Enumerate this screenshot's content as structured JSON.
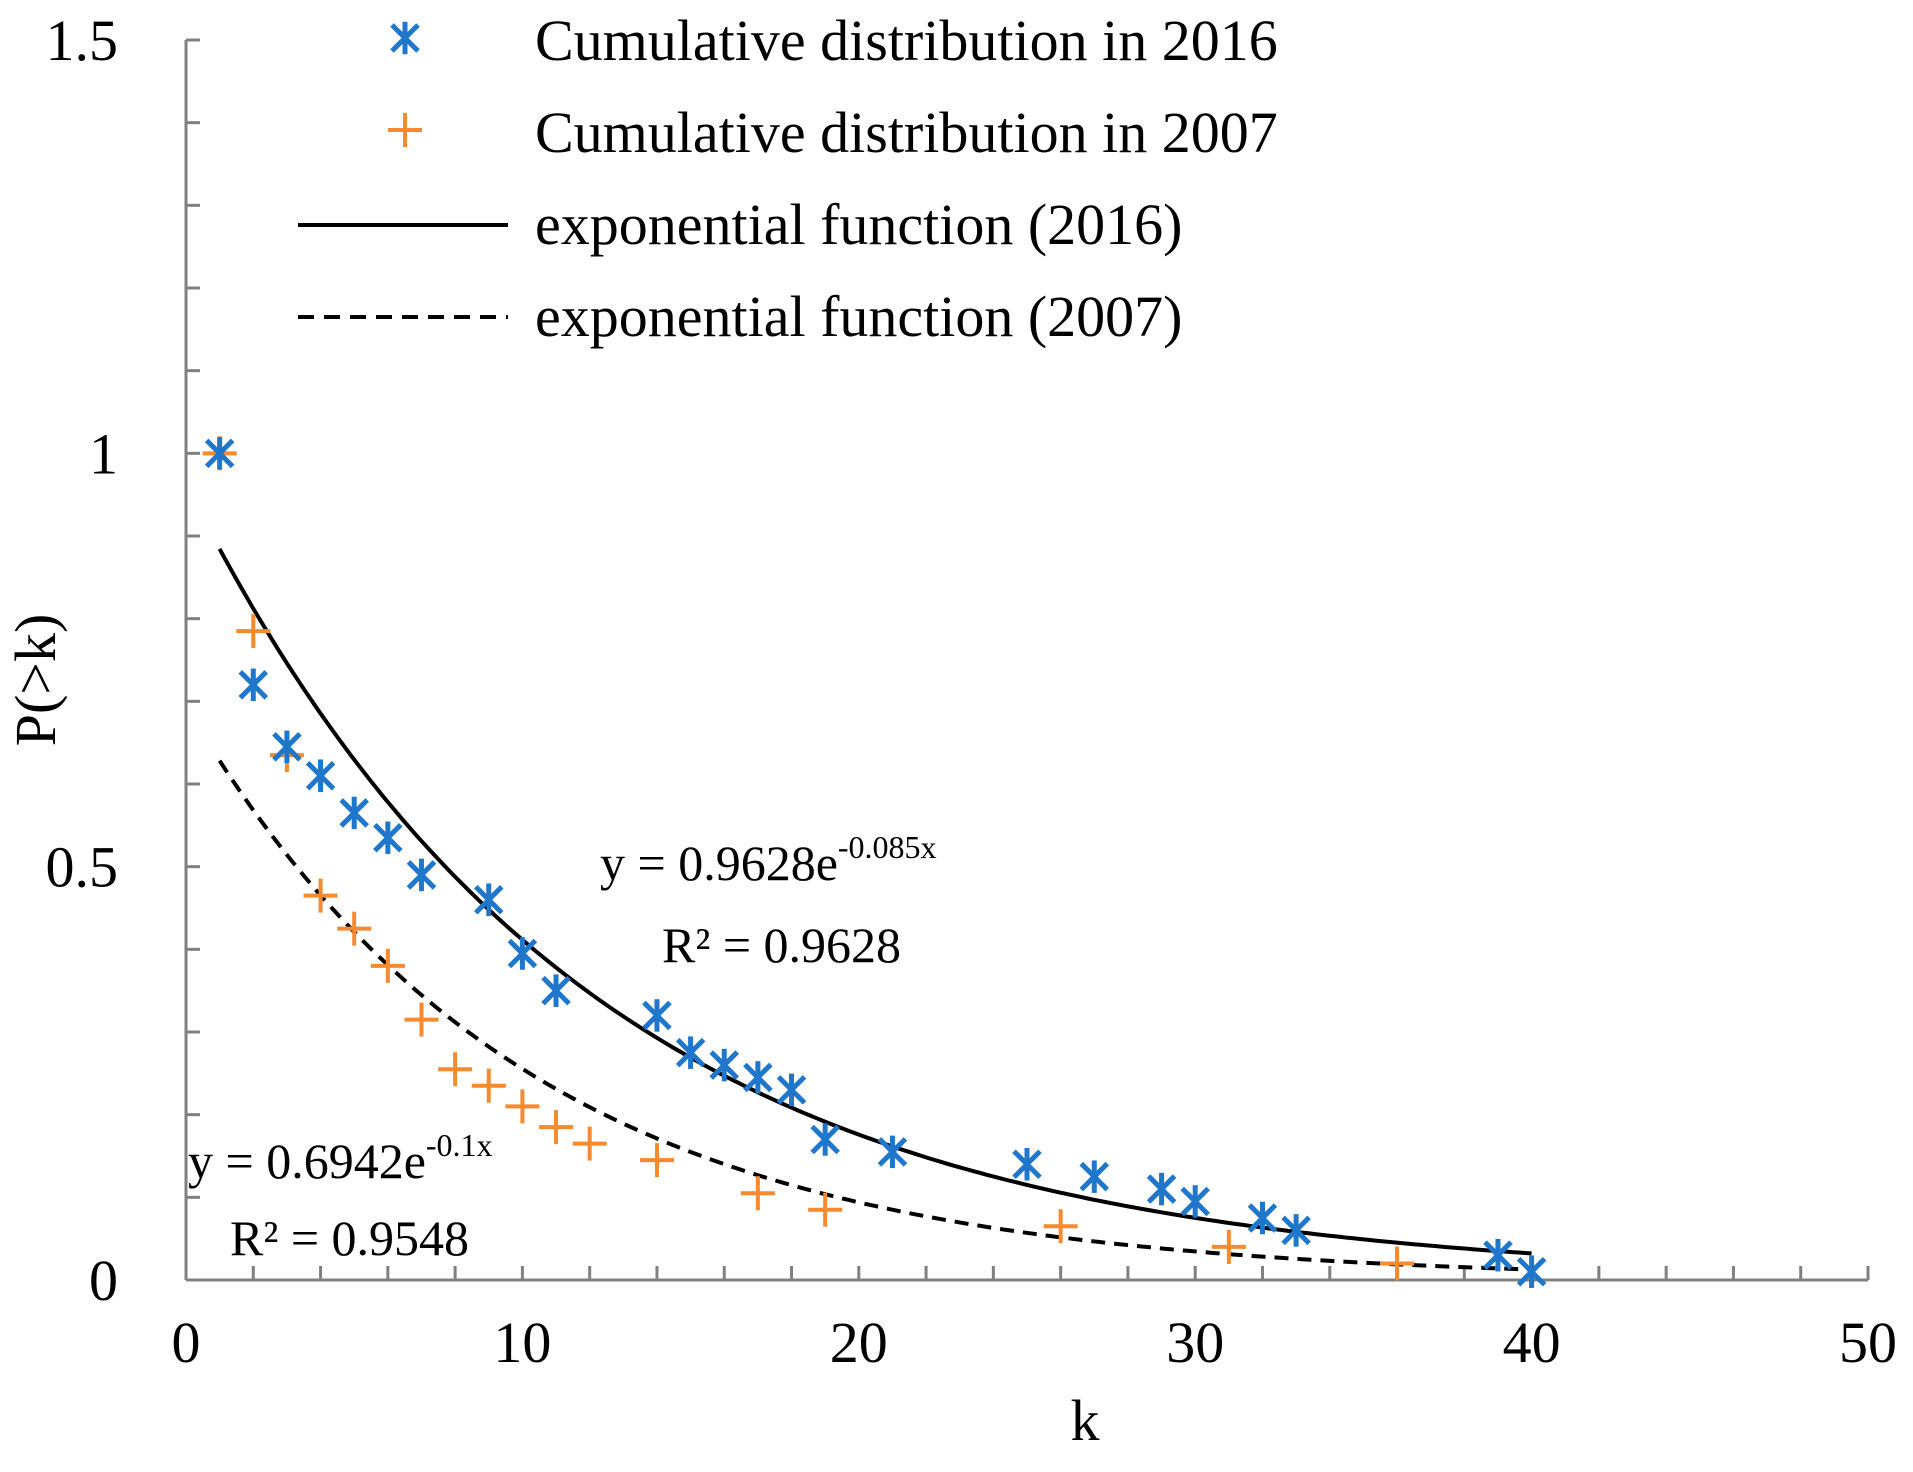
{
  "chart_data": {
    "type": "scatter",
    "xlabel": "k",
    "ylabel": "P(>k)",
    "xlim": [
      0,
      50
    ],
    "ylim": [
      0,
      1.5
    ],
    "x_ticks": [
      0,
      10,
      20,
      30,
      40,
      50
    ],
    "y_ticks": [
      0,
      0.5,
      1,
      1.5
    ],
    "x_tick_labels": [
      "0",
      "10",
      "20",
      "30",
      "40",
      "50"
    ],
    "y_tick_labels": [
      "0",
      "0.5",
      "1",
      "1.5"
    ],
    "x_minor_step": 2,
    "y_minor_step": 0.1,
    "grid": false,
    "legend_position": "top",
    "colors": {
      "series_2016": "#1f77cc",
      "series_2007": "#f58a2e",
      "fit": "#000000",
      "axis": "#808080"
    },
    "series": [
      {
        "name": "Cumulative distribution in 2016",
        "marker": "asterisk",
        "x": [
          1,
          2,
          3,
          4,
          5,
          6,
          7,
          9,
          10,
          11,
          14,
          15,
          16,
          17,
          18,
          19,
          21,
          25,
          27,
          29,
          30,
          32,
          33,
          39,
          40
        ],
        "y": [
          1.0,
          0.72,
          0.645,
          0.61,
          0.565,
          0.535,
          0.49,
          0.46,
          0.395,
          0.35,
          0.32,
          0.275,
          0.26,
          0.245,
          0.23,
          0.17,
          0.155,
          0.14,
          0.125,
          0.11,
          0.095,
          0.075,
          0.06,
          0.03,
          0.01
        ]
      },
      {
        "name": "Cumulative distribution in 2007",
        "marker": "plus",
        "x": [
          1,
          2,
          3,
          4,
          5,
          6,
          7,
          8,
          9,
          10,
          11,
          12,
          14,
          17,
          19,
          26,
          31,
          36
        ],
        "y": [
          1.0,
          0.785,
          0.635,
          0.465,
          0.425,
          0.38,
          0.315,
          0.255,
          0.235,
          0.21,
          0.185,
          0.165,
          0.145,
          0.105,
          0.085,
          0.065,
          0.04,
          0.02
        ]
      },
      {
        "name": "exponential function (2016)",
        "type": "line",
        "style": "solid",
        "a": 0.9628,
        "b": -0.085,
        "x_range": [
          1,
          40
        ]
      },
      {
        "name": "exponential function (2007)",
        "type": "line",
        "style": "dashed",
        "a": 0.6942,
        "b": -0.1,
        "x_range": [
          1,
          40
        ]
      }
    ],
    "legend": [
      "Cumulative distribution in 2016",
      "Cumulative distribution in 2007",
      "exponential function (2016)",
      "exponential function (2007)"
    ],
    "annotations": {
      "fit_2016": {
        "eq_prefix": "y = 0.9628e",
        "eq_exp": "-0.085x",
        "r2": "R² = 0.9628"
      },
      "fit_2007": {
        "eq_prefix": "y = 0.6942e",
        "eq_exp": "-0.1x",
        "r2": "R² = 0.9548"
      }
    }
  }
}
